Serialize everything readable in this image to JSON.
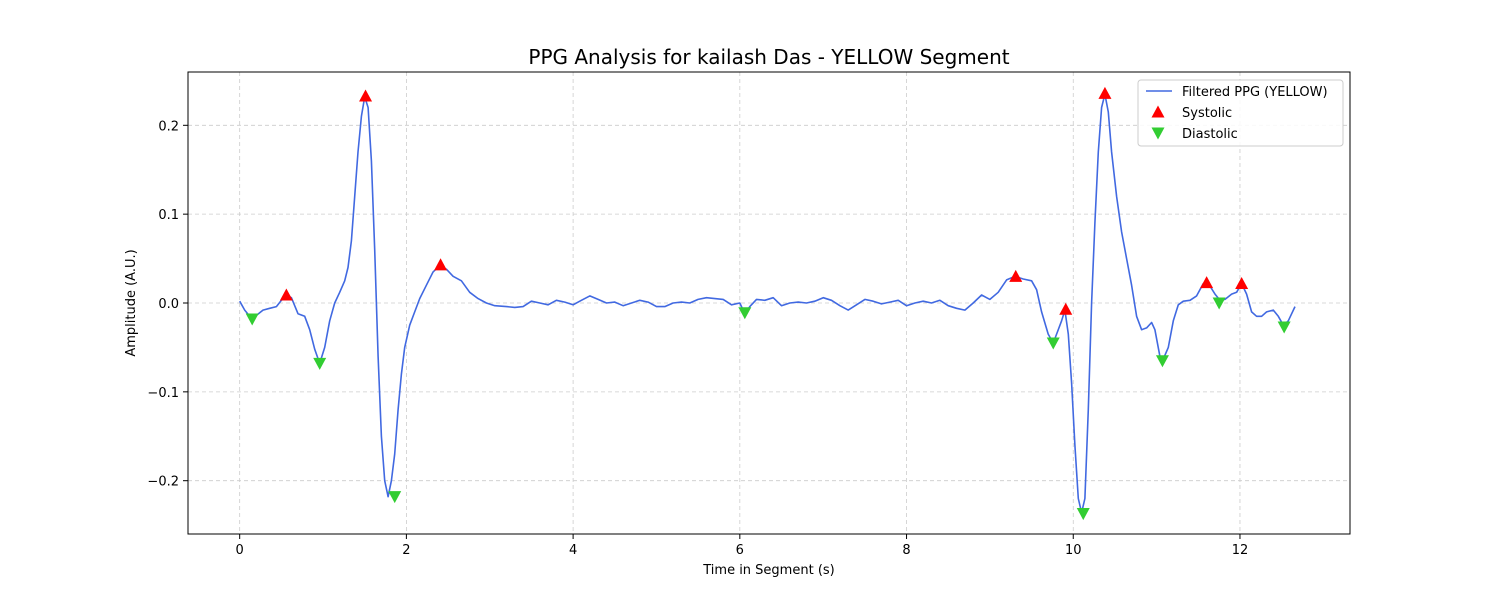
{
  "chart_data": {
    "type": "line",
    "title": "PPG Analysis for kailash Das - YELLOW Segment",
    "xlabel": "Time in Segment (s)",
    "ylabel": "Amplitude (A.U.)",
    "xlim": [
      -0.62,
      13.32
    ],
    "ylim": [
      -0.26,
      0.26
    ],
    "xticks": [
      0,
      2,
      4,
      6,
      8,
      10,
      12
    ],
    "xtick_labels": [
      "0",
      "2",
      "4",
      "6",
      "8",
      "10",
      "12"
    ],
    "yticks": [
      -0.2,
      -0.1,
      0.0,
      0.1,
      0.2
    ],
    "ytick_labels": [
      "−0.2",
      "−0.1",
      "0.0",
      "0.1",
      "0.2"
    ],
    "grid": true,
    "legend_position": "top-right",
    "series": [
      {
        "name": "Filtered PPG (YELLOW)",
        "kind": "line",
        "color": "#4169e1",
        "points": [
          [
            0.0,
            0.002
          ],
          [
            0.06,
            -0.008
          ],
          [
            0.12,
            -0.015
          ],
          [
            0.2,
            -0.014
          ],
          [
            0.28,
            -0.008
          ],
          [
            0.36,
            -0.006
          ],
          [
            0.44,
            -0.004
          ],
          [
            0.5,
            0.003
          ],
          [
            0.56,
            0.009
          ],
          [
            0.62,
            0.006
          ],
          [
            0.7,
            -0.012
          ],
          [
            0.78,
            -0.015
          ],
          [
            0.84,
            -0.03
          ],
          [
            0.9,
            -0.052
          ],
          [
            0.96,
            -0.068
          ],
          [
            1.02,
            -0.05
          ],
          [
            1.08,
            -0.02
          ],
          [
            1.14,
            0.0
          ],
          [
            1.2,
            0.012
          ],
          [
            1.26,
            0.025
          ],
          [
            1.3,
            0.04
          ],
          [
            1.34,
            0.07
          ],
          [
            1.38,
            0.12
          ],
          [
            1.42,
            0.17
          ],
          [
            1.46,
            0.21
          ],
          [
            1.5,
            0.232
          ],
          [
            1.54,
            0.22
          ],
          [
            1.58,
            0.16
          ],
          [
            1.62,
            0.06
          ],
          [
            1.66,
            -0.06
          ],
          [
            1.7,
            -0.15
          ],
          [
            1.74,
            -0.2
          ],
          [
            1.78,
            -0.218
          ],
          [
            1.82,
            -0.2
          ],
          [
            1.86,
            -0.17
          ],
          [
            1.9,
            -0.12
          ],
          [
            1.94,
            -0.08
          ],
          [
            1.98,
            -0.05
          ],
          [
            2.04,
            -0.025
          ],
          [
            2.1,
            -0.01
          ],
          [
            2.16,
            0.005
          ],
          [
            2.24,
            0.02
          ],
          [
            2.32,
            0.035
          ],
          [
            2.4,
            0.042
          ],
          [
            2.48,
            0.038
          ],
          [
            2.56,
            0.03
          ],
          [
            2.66,
            0.025
          ],
          [
            2.76,
            0.012
          ],
          [
            2.86,
            0.005
          ],
          [
            2.96,
            0.0
          ],
          [
            3.06,
            -0.003
          ],
          [
            3.2,
            -0.004
          ],
          [
            3.3,
            -0.005
          ],
          [
            3.4,
            -0.004
          ],
          [
            3.5,
            0.002
          ],
          [
            3.6,
            0.0
          ],
          [
            3.7,
            -0.002
          ],
          [
            3.8,
            0.003
          ],
          [
            3.9,
            0.001
          ],
          [
            4.0,
            -0.002
          ],
          [
            4.1,
            0.003
          ],
          [
            4.2,
            0.008
          ],
          [
            4.3,
            0.004
          ],
          [
            4.4,
            0.0
          ],
          [
            4.5,
            0.001
          ],
          [
            4.6,
            -0.003
          ],
          [
            4.7,
            0.0
          ],
          [
            4.8,
            0.003
          ],
          [
            4.9,
            0.001
          ],
          [
            5.0,
            -0.004
          ],
          [
            5.1,
            -0.004
          ],
          [
            5.2,
            0.0
          ],
          [
            5.3,
            0.001
          ],
          [
            5.4,
            0.0
          ],
          [
            5.5,
            0.004
          ],
          [
            5.6,
            0.006
          ],
          [
            5.7,
            0.005
          ],
          [
            5.8,
            0.004
          ],
          [
            5.9,
            -0.002
          ],
          [
            6.0,
            0.0
          ],
          [
            6.06,
            -0.012
          ],
          [
            6.12,
            -0.004
          ],
          [
            6.2,
            0.004
          ],
          [
            6.3,
            0.003
          ],
          [
            6.4,
            0.006
          ],
          [
            6.5,
            -0.003
          ],
          [
            6.6,
            0.0
          ],
          [
            6.7,
            0.001
          ],
          [
            6.8,
            0.0
          ],
          [
            6.9,
            0.002
          ],
          [
            7.0,
            0.006
          ],
          [
            7.1,
            0.003
          ],
          [
            7.2,
            -0.003
          ],
          [
            7.3,
            -0.008
          ],
          [
            7.4,
            -0.002
          ],
          [
            7.5,
            0.004
          ],
          [
            7.6,
            0.002
          ],
          [
            7.7,
            -0.001
          ],
          [
            7.8,
            0.001
          ],
          [
            7.9,
            0.003
          ],
          [
            8.0,
            -0.003
          ],
          [
            8.1,
            0.0
          ],
          [
            8.2,
            0.002
          ],
          [
            8.3,
            0.0
          ],
          [
            8.4,
            0.003
          ],
          [
            8.5,
            -0.003
          ],
          [
            8.6,
            -0.006
          ],
          [
            8.7,
            -0.008
          ],
          [
            8.8,
            0.0
          ],
          [
            8.9,
            0.009
          ],
          [
            8.96,
            0.006
          ],
          [
            9.0,
            0.004
          ],
          [
            9.1,
            0.012
          ],
          [
            9.2,
            0.026
          ],
          [
            9.3,
            0.03
          ],
          [
            9.4,
            0.027
          ],
          [
            9.5,
            0.025
          ],
          [
            9.56,
            0.015
          ],
          [
            9.62,
            -0.01
          ],
          [
            9.7,
            -0.035
          ],
          [
            9.76,
            -0.045
          ],
          [
            9.8,
            -0.035
          ],
          [
            9.86,
            -0.02
          ],
          [
            9.9,
            -0.008
          ],
          [
            9.94,
            -0.035
          ],
          [
            9.98,
            -0.09
          ],
          [
            10.02,
            -0.16
          ],
          [
            10.06,
            -0.22
          ],
          [
            10.1,
            -0.236
          ],
          [
            10.14,
            -0.22
          ],
          [
            10.18,
            -0.12
          ],
          [
            10.22,
            0.0
          ],
          [
            10.26,
            0.09
          ],
          [
            10.3,
            0.17
          ],
          [
            10.34,
            0.22
          ],
          [
            10.38,
            0.235
          ],
          [
            10.42,
            0.215
          ],
          [
            10.46,
            0.17
          ],
          [
            10.52,
            0.12
          ],
          [
            10.58,
            0.08
          ],
          [
            10.64,
            0.05
          ],
          [
            10.7,
            0.02
          ],
          [
            10.76,
            -0.015
          ],
          [
            10.82,
            -0.03
          ],
          [
            10.88,
            -0.028
          ],
          [
            10.94,
            -0.022
          ],
          [
            10.98,
            -0.03
          ],
          [
            11.04,
            -0.06
          ],
          [
            11.08,
            -0.063
          ],
          [
            11.14,
            -0.05
          ],
          [
            11.2,
            -0.02
          ],
          [
            11.26,
            -0.002
          ],
          [
            11.32,
            0.002
          ],
          [
            11.4,
            0.003
          ],
          [
            11.48,
            0.008
          ],
          [
            11.56,
            0.022
          ],
          [
            11.62,
            0.022
          ],
          [
            11.7,
            0.01
          ],
          [
            11.76,
            0.003
          ],
          [
            11.82,
            0.004
          ],
          [
            11.9,
            0.01
          ],
          [
            11.96,
            0.012
          ],
          [
            12.02,
            0.022
          ],
          [
            12.08,
            0.01
          ],
          [
            12.14,
            -0.01
          ],
          [
            12.2,
            -0.015
          ],
          [
            12.26,
            -0.015
          ],
          [
            12.32,
            -0.01
          ],
          [
            12.4,
            -0.008
          ],
          [
            12.46,
            -0.015
          ],
          [
            12.52,
            -0.025
          ],
          [
            12.58,
            -0.02
          ],
          [
            12.66,
            -0.004
          ]
        ]
      },
      {
        "name": "Systolic",
        "kind": "markers",
        "marker": "triangle-up",
        "color": "#ff0000",
        "points": [
          [
            0.56,
            0.009
          ],
          [
            1.51,
            0.233
          ],
          [
            2.41,
            0.043
          ],
          [
            9.31,
            0.03
          ],
          [
            9.91,
            -0.007
          ],
          [
            10.38,
            0.236
          ],
          [
            11.6,
            0.023
          ],
          [
            12.02,
            0.022
          ]
        ]
      },
      {
        "name": "Diastolic",
        "kind": "markers",
        "marker": "triangle-down",
        "color": "#32cd32",
        "points": [
          [
            0.15,
            -0.018
          ],
          [
            0.96,
            -0.068
          ],
          [
            1.86,
            -0.218
          ],
          [
            6.06,
            -0.011
          ],
          [
            9.76,
            -0.045
          ],
          [
            10.12,
            -0.237
          ],
          [
            11.07,
            -0.065
          ],
          [
            11.75,
            0.0
          ],
          [
            12.53,
            -0.027
          ]
        ]
      }
    ]
  }
}
